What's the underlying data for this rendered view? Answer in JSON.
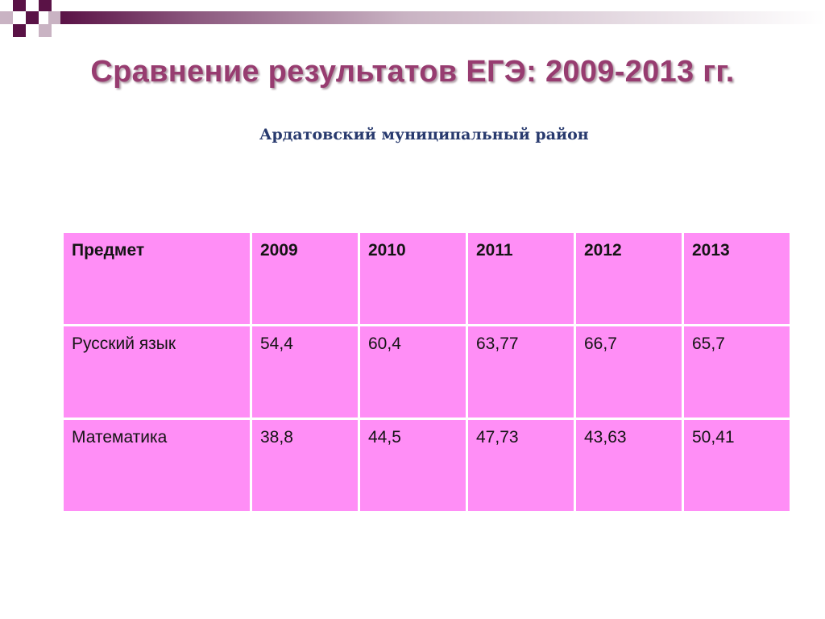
{
  "slide": {
    "title": "Сравнение результатов ЕГЭ: 2009-2013 гг.",
    "subtitle": "Ардатовский муниципальный район"
  },
  "colors": {
    "title": "#973c70",
    "subtitle": "#283a6e",
    "table_fill": "#ff8ef6",
    "deco_dark": "#5a1246",
    "deco_light": "#c9b3c3"
  },
  "table": {
    "headers": [
      "Предмет",
      "2009",
      "2010",
      "2011",
      "2012",
      "2013"
    ],
    "rows": [
      [
        "Русский язык",
        "54,4",
        "60,4",
        "63,77",
        "66,7",
        "65,7"
      ],
      [
        "Математика",
        "38,8",
        "44,5",
        "47,73",
        "43,63",
        "50,41"
      ]
    ]
  }
}
